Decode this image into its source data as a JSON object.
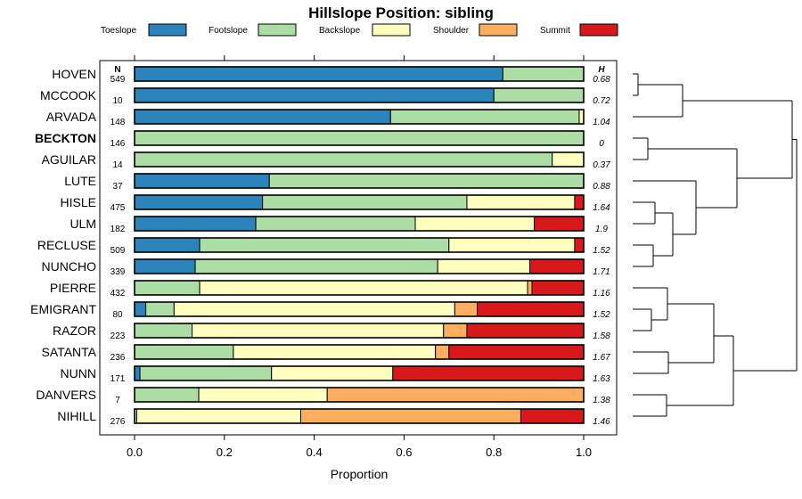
{
  "chart_data": {
    "type": "bar",
    "orientation": "horizontal-stacked",
    "title": "Hillslope Position: sibling",
    "xlabel": "Proportion",
    "xlim": [
      0,
      1
    ],
    "xticks": [
      "0.0",
      "0.2",
      "0.4",
      "0.6",
      "0.8",
      "1.0"
    ],
    "n_header": "N",
    "h_header": "H",
    "legend": [
      {
        "name": "Toeslope",
        "color": "#2b83ba"
      },
      {
        "name": "Footslope",
        "color": "#abdda4"
      },
      {
        "name": "Backslope",
        "color": "#ffffbf"
      },
      {
        "name": "Shoulder",
        "color": "#fdae61"
      },
      {
        "name": "Summit",
        "color": "#d7191c"
      }
    ],
    "rows": [
      {
        "name": "HOVEN",
        "n": "549",
        "h": "0.68",
        "bold": false,
        "values": [
          0.82,
          0.18,
          0,
          0,
          0
        ]
      },
      {
        "name": "MCCOOK",
        "n": "10",
        "h": "0.72",
        "bold": false,
        "values": [
          0.8,
          0.2,
          0,
          0,
          0
        ]
      },
      {
        "name": "ARVADA",
        "n": "148",
        "h": "1.04",
        "bold": false,
        "values": [
          0.57,
          0.42,
          0.01,
          0,
          0
        ]
      },
      {
        "name": "BECKTON",
        "n": "146",
        "h": "0",
        "bold": true,
        "values": [
          0,
          1.0,
          0,
          0,
          0
        ]
      },
      {
        "name": "AGUILAR",
        "n": "14",
        "h": "0.37",
        "bold": false,
        "values": [
          0,
          0.93,
          0.07,
          0,
          0
        ]
      },
      {
        "name": "LUTE",
        "n": "37",
        "h": "0.88",
        "bold": false,
        "values": [
          0.3,
          0.7,
          0,
          0,
          0
        ]
      },
      {
        "name": "HISLE",
        "n": "475",
        "h": "1.64",
        "bold": false,
        "values": [
          0.285,
          0.455,
          0.24,
          0,
          0.02
        ]
      },
      {
        "name": "ULM",
        "n": "182",
        "h": "1.9",
        "bold": false,
        "values": [
          0.27,
          0.355,
          0.265,
          0,
          0.11
        ]
      },
      {
        "name": "RECLUSE",
        "n": "509",
        "h": "1.52",
        "bold": false,
        "values": [
          0.145,
          0.555,
          0.28,
          0,
          0.02
        ]
      },
      {
        "name": "NUNCHO",
        "n": "339",
        "h": "1.71",
        "bold": false,
        "values": [
          0.135,
          0.54,
          0.205,
          0,
          0.12
        ]
      },
      {
        "name": "PIERRE",
        "n": "432",
        "h": "1.16",
        "bold": false,
        "values": [
          0,
          0.145,
          0.73,
          0.01,
          0.115
        ]
      },
      {
        "name": "EMIGRANT",
        "n": "80",
        "h": "1.52",
        "bold": false,
        "values": [
          0.025,
          0.063,
          0.625,
          0.05,
          0.237
        ]
      },
      {
        "name": "RAZOR",
        "n": "223",
        "h": "1.58",
        "bold": false,
        "values": [
          0,
          0.128,
          0.56,
          0.052,
          0.26
        ]
      },
      {
        "name": "SATANTA",
        "n": "236",
        "h": "1.67",
        "bold": false,
        "values": [
          0,
          0.22,
          0.45,
          0.03,
          0.3
        ]
      },
      {
        "name": "NUNN",
        "n": "171",
        "h": "1.63",
        "bold": false,
        "values": [
          0.012,
          0.293,
          0.27,
          0,
          0.425
        ]
      },
      {
        "name": "DANVERS",
        "n": "7",
        "h": "1.38",
        "bold": false,
        "values": [
          0,
          0.143,
          0.286,
          0.571,
          0
        ]
      },
      {
        "name": "NIHILL",
        "n": "276",
        "h": "1.46",
        "bold": false,
        "values": [
          0,
          0.005,
          0.365,
          0.49,
          0.14
        ]
      }
    ]
  }
}
